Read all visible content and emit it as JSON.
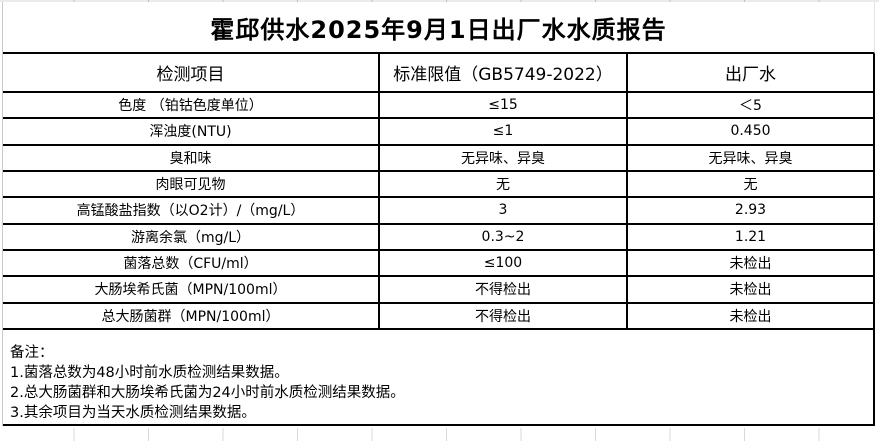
{
  "title": "霍邱供水2025年9月1日出厂水水质报告",
  "table": {
    "headers": {
      "item": "检测项目",
      "limit": "标准限值（GB5749-2022）",
      "value": "出厂水"
    },
    "rows": [
      {
        "item": "色度 （铂钴色度单位）",
        "limit": "≤15",
        "value": "＜5"
      },
      {
        "item": "浑浊度(NTU)",
        "limit": "≤1",
        "value": "0.450"
      },
      {
        "item": "臭和味",
        "limit": "无异味、异臭",
        "value": "无异味、异臭"
      },
      {
        "item": "肉眼可见物",
        "limit": "无",
        "value": "无"
      },
      {
        "item": "高锰酸盐指数（以O2计）/（mg/L）",
        "limit": "3",
        "value": "2.93"
      },
      {
        "item": "游离余氯（mg/L）",
        "limit": "0.3~2",
        "value": "1.21"
      },
      {
        "item": "菌落总数（CFU/ml）",
        "limit": "≤100",
        "value": "未检出"
      },
      {
        "item": "大肠埃希氏菌（MPN/100ml）",
        "limit": "不得检出",
        "value": "未检出"
      },
      {
        "item": "总大肠菌群（MPN/100ml）",
        "limit": "不得检出",
        "value": "未检出"
      }
    ]
  },
  "notes": {
    "label": "备注：",
    "items": [
      "1.菌落总数为48小时前水质检测结果数据。",
      "2.总大肠菌群和大肠埃希氏菌为24小时前水质检测结果数据。",
      "3.其余项目为当天水质检测结果数据。"
    ]
  },
  "colors": {
    "table_border": "#000000",
    "gridline": "#d9d9d9",
    "text": "#000000",
    "background": "#ffffff"
  }
}
